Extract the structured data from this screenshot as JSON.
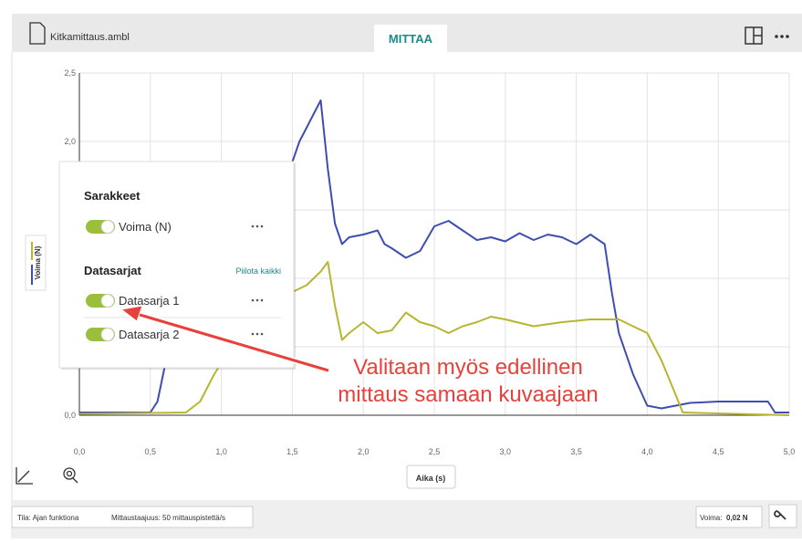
{
  "header": {
    "filename": "Kitkamittaus.ambl",
    "tab": "MITTAA"
  },
  "chart": {
    "type": "line",
    "x_label": "Aika (s)",
    "y_label": "Voima (N)",
    "xlim": [
      0,
      5
    ],
    "ylim": [
      0,
      2.5
    ],
    "xticks": [
      {
        "value": 0,
        "label": "0,0"
      },
      {
        "value": 0.5,
        "label": "0,5"
      },
      {
        "value": 1,
        "label": "1,0"
      },
      {
        "value": 1.5,
        "label": "1,5"
      },
      {
        "value": 2,
        "label": "2,0"
      },
      {
        "value": 2.5,
        "label": "2,5"
      },
      {
        "value": 3,
        "label": "3,0"
      },
      {
        "value": 3.5,
        "label": "3,5"
      },
      {
        "value": 4,
        "label": "4,0"
      },
      {
        "value": 4.5,
        "label": "4,5"
      },
      {
        "value": 5,
        "label": "5,0"
      }
    ],
    "yticks": [
      {
        "value": 0,
        "label": "0,0"
      },
      {
        "value": 0.5,
        "label": "0,5"
      },
      {
        "value": 1,
        "label": "1,0"
      },
      {
        "value": 1.5,
        "label": "1,5"
      },
      {
        "value": 2,
        "label": "2,0"
      },
      {
        "value": 2.5,
        "label": "2,5"
      }
    ],
    "grid": true,
    "series": [
      {
        "name": "Datasarja 1",
        "color": "#3f4db3",
        "x": [
          0,
          0.5,
          0.55,
          0.6,
          0.65,
          0.8,
          1.0,
          1.3,
          1.5,
          1.55,
          1.6,
          1.65,
          1.7,
          1.75,
          1.8,
          1.85,
          1.9,
          2.0,
          2.1,
          2.15,
          2.2,
          2.3,
          2.4,
          2.5,
          2.6,
          2.7,
          2.8,
          2.9,
          3.0,
          3.1,
          3.2,
          3.3,
          3.4,
          3.5,
          3.6,
          3.7,
          3.75,
          3.8,
          3.9,
          4.0,
          4.1,
          4.3,
          4.5,
          4.7,
          4.85,
          4.9,
          5.0
        ],
        "values": [
          0.02,
          0.02,
          0.1,
          0.35,
          0.4,
          0.4,
          0.5,
          0.6,
          1.85,
          2.0,
          2.1,
          2.2,
          2.3,
          1.8,
          1.4,
          1.25,
          1.3,
          1.32,
          1.35,
          1.25,
          1.22,
          1.15,
          1.2,
          1.38,
          1.42,
          1.35,
          1.28,
          1.3,
          1.27,
          1.33,
          1.28,
          1.32,
          1.3,
          1.25,
          1.32,
          1.25,
          0.9,
          0.6,
          0.3,
          0.07,
          0.05,
          0.09,
          0.1,
          0.1,
          0.1,
          0.02,
          0.02
        ]
      },
      {
        "name": "Datasarja 2",
        "color": "#b8b530",
        "x": [
          0,
          0.75,
          0.85,
          0.95,
          1.0,
          1.2,
          1.5,
          1.6,
          1.7,
          1.75,
          1.8,
          1.85,
          1.9,
          2.0,
          2.1,
          2.2,
          2.3,
          2.4,
          2.5,
          2.6,
          2.7,
          2.8,
          2.9,
          3.0,
          3.2,
          3.4,
          3.6,
          3.8,
          3.9,
          4.0,
          4.1,
          4.2,
          4.25,
          5.0
        ],
        "values": [
          0.01,
          0.02,
          0.1,
          0.3,
          0.38,
          0.5,
          0.9,
          0.95,
          1.05,
          1.12,
          0.8,
          0.55,
          0.6,
          0.68,
          0.6,
          0.62,
          0.75,
          0.68,
          0.65,
          0.6,
          0.65,
          0.68,
          0.72,
          0.7,
          0.65,
          0.68,
          0.7,
          0.7,
          0.65,
          0.6,
          0.4,
          0.15,
          0.02,
          0
        ]
      }
    ]
  },
  "panel": {
    "columns_title": "Sarakkeet",
    "column": "Voima (N)",
    "series_title": "Datasarjat",
    "hide_all": "Piilota kaikki",
    "series": [
      "Datasarja 1",
      "Datasarja 2"
    ]
  },
  "annotation": [
    "Valitaan myös edellinen",
    "mittaus samaan kuvaajaan"
  ],
  "status": {
    "mode": "Tila: Ajan funktiona",
    "rate": "Mittaustaajuus: 50 mittauspistettä/s",
    "reading_label": "Voima:",
    "reading_value": "0,02 N"
  }
}
